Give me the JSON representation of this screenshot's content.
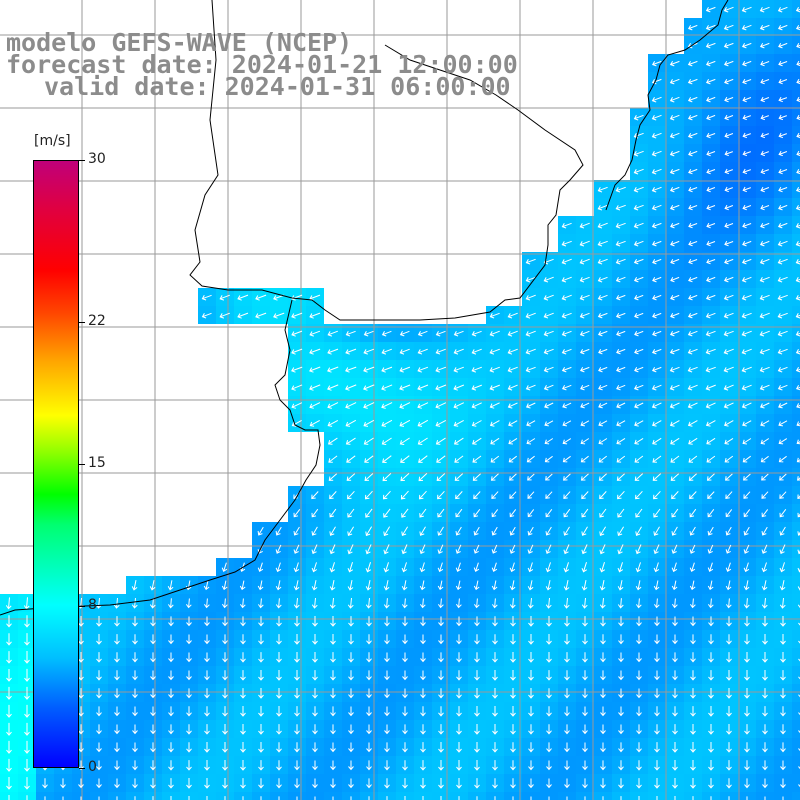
{
  "header": {
    "line1": "modelo GEFS-WAVE (NCEP)",
    "line2": "forecast date: 2024-01-21 12:00:00",
    "line3": "valid date: 2024-01-31 06:00:00"
  },
  "legend": {
    "unit": "[m/s]",
    "min": 0,
    "max": 30,
    "ticks": [
      "30",
      "22",
      "15",
      "8",
      "0"
    ],
    "tick_values": [
      30,
      22,
      15,
      8,
      0
    ],
    "colors": [
      "#0000ff",
      "#00bfff",
      "#00ffff",
      "#00ff00",
      "#ffff00",
      "#ffa500",
      "#ff0000",
      "#c0007a"
    ]
  },
  "map": {
    "variable": "wind speed and direction",
    "land_color": "#ffffff",
    "coastline_color": "#000000",
    "grid_color": "#9a9a9a",
    "arrow_color": "#ffffff",
    "typical_speed_ms": 6,
    "max_speed_ms": 8,
    "prevailing_direction": "northeasterly in the east, turning northerly in the south"
  }
}
